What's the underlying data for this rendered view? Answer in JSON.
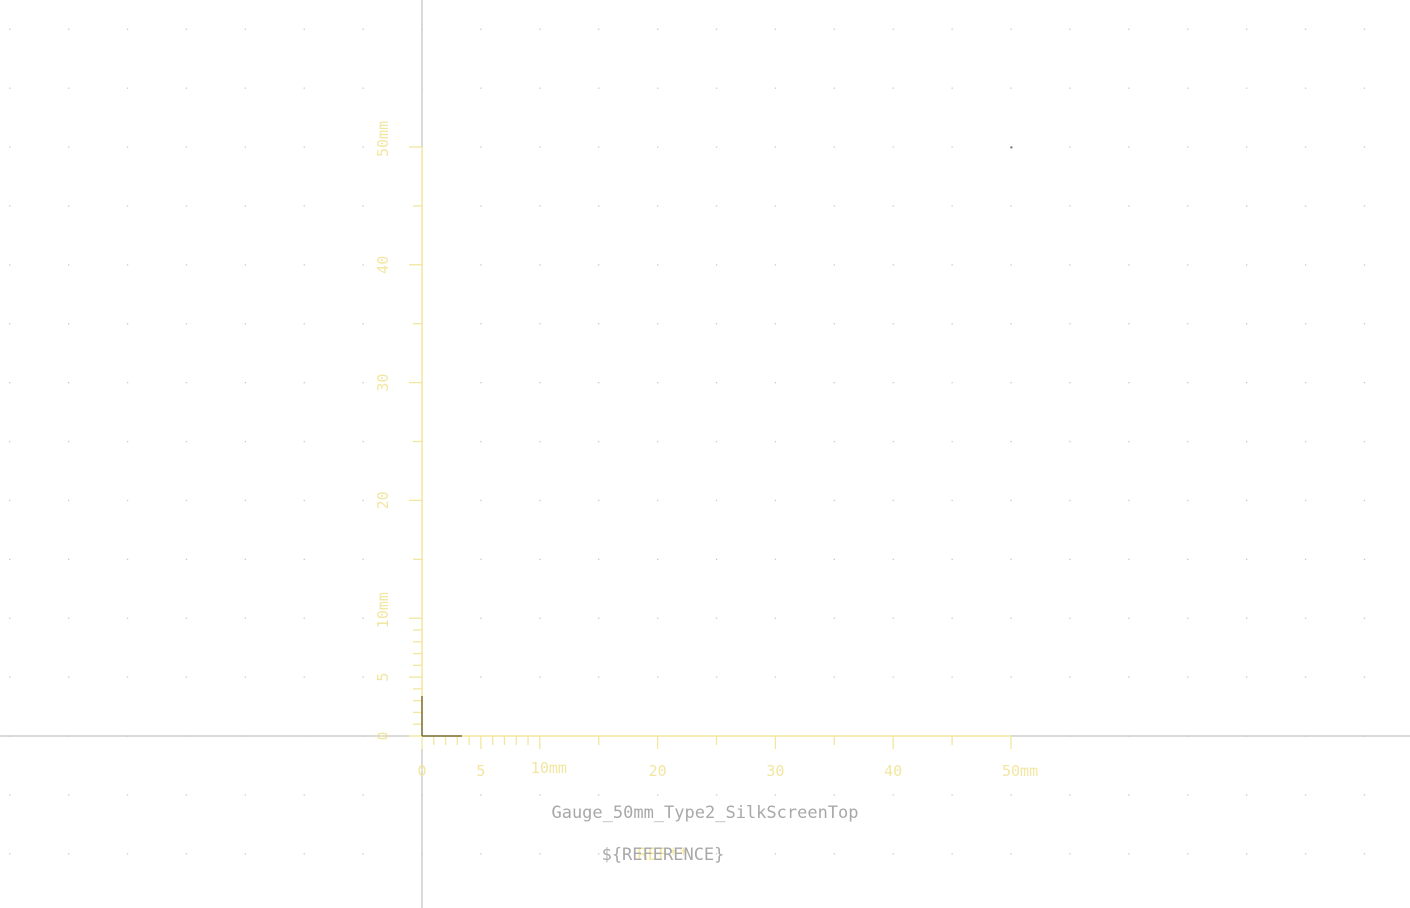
{
  "colors": {
    "background": "#ffffff",
    "grid_dot": "#c8c8c8",
    "grid_dot_major": "#6e6e6e",
    "axis_line": "#b4b4b4",
    "silkscreen": "#f2e6a0",
    "anchor": "#7a7038",
    "footprint_text": "#a8a8a8",
    "value_text": "#f2e6a0"
  },
  "gauge": {
    "unit": "mm",
    "x_scale": {
      "labels": [
        "0",
        "5",
        "10mm",
        "20",
        "30",
        "40",
        "50mm"
      ],
      "values_mm": [
        0,
        5,
        10,
        20,
        30,
        40,
        50
      ]
    },
    "y_scale": {
      "labels": [
        "0",
        "5",
        "10mm",
        "20",
        "30",
        "40",
        "50mm"
      ],
      "values_mm": [
        0,
        5,
        10,
        20,
        30,
        40,
        50
      ]
    }
  },
  "footprint": {
    "name": "Gauge_50mm_Type2_SilkScreenTop",
    "reference": "${REFERENCE}",
    "value_overlay": "REF**"
  }
}
